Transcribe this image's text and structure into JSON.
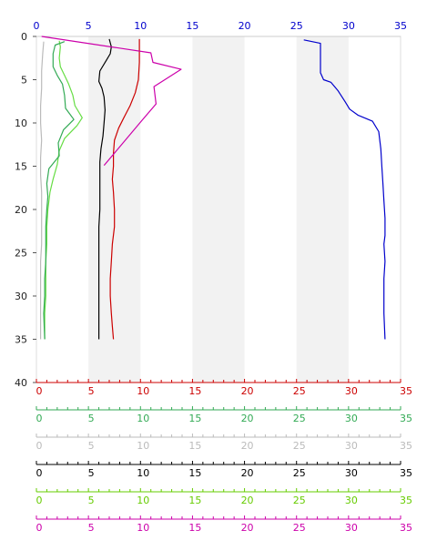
{
  "chart_data": {
    "type": "line",
    "orientation": "profile-vertical",
    "y_axis": {
      "label": "",
      "range": [
        0,
        40
      ],
      "inverted": true,
      "ticks": [
        0,
        5,
        10,
        15,
        20,
        25,
        30,
        35,
        40
      ]
    },
    "x_axes": [
      {
        "position": "top",
        "range": [
          0,
          35
        ],
        "ticks": [
          0,
          5,
          10,
          15,
          20,
          25,
          30,
          35
        ],
        "color": "#0000cc"
      },
      {
        "position": "bottom",
        "range": [
          0,
          35
        ],
        "ticks": [
          0,
          5,
          10,
          15,
          20,
          25,
          30,
          35
        ],
        "color": "#cc0000"
      },
      {
        "position": "bottom",
        "range": [
          0,
          35
        ],
        "ticks": [
          0,
          5,
          10,
          15,
          20,
          25,
          30,
          35
        ],
        "color": "#33aa55"
      },
      {
        "position": "bottom",
        "range": [
          0,
          35
        ],
        "ticks": [
          0,
          5,
          10,
          15,
          20,
          25,
          30,
          35
        ],
        "color": "#bbbbbb"
      },
      {
        "position": "bottom",
        "range": [
          0,
          35
        ],
        "ticks": [
          0,
          5,
          10,
          15,
          20,
          25,
          30,
          35
        ],
        "color": "#000000"
      },
      {
        "position": "bottom",
        "range": [
          0,
          35
        ],
        "ticks": [
          0,
          5,
          10,
          15,
          20,
          25,
          30,
          35
        ],
        "color": "#66cc00"
      },
      {
        "position": "bottom",
        "range": [
          0,
          35
        ],
        "ticks": [
          0,
          5,
          10,
          15,
          20,
          25,
          30,
          35
        ],
        "color": "#cc00aa"
      }
    ],
    "shaded_bands": [
      [
        5,
        10
      ],
      [
        15,
        20
      ],
      [
        25,
        30
      ]
    ],
    "band_color": "#f2f2f2",
    "series": [
      {
        "color": "#0000cc",
        "points": [
          [
            25.7,
            0.4
          ],
          [
            27.3,
            0.8
          ],
          [
            27.3,
            4.2
          ],
          [
            27.6,
            5.0
          ],
          [
            28.3,
            5.3
          ],
          [
            29.0,
            6.3
          ],
          [
            29.7,
            7.6
          ],
          [
            30.1,
            8.4
          ],
          [
            30.9,
            9.1
          ],
          [
            32.3,
            9.8
          ],
          [
            32.9,
            11.0
          ],
          [
            33.1,
            13.0
          ],
          [
            33.2,
            15.0
          ],
          [
            33.3,
            17.0
          ],
          [
            33.4,
            19.0
          ],
          [
            33.5,
            21.0
          ],
          [
            33.5,
            23.0
          ],
          [
            33.4,
            24.0
          ],
          [
            33.5,
            26.0
          ],
          [
            33.4,
            28.0
          ],
          [
            33.4,
            30.0
          ],
          [
            33.4,
            32.0
          ],
          [
            33.5,
            35.0
          ]
        ]
      },
      {
        "color": "#cc0000",
        "points": [
          [
            9.9,
            0.3
          ],
          [
            9.9,
            3.0
          ],
          [
            9.8,
            5.0
          ],
          [
            9.5,
            6.5
          ],
          [
            9.0,
            8.0
          ],
          [
            8.4,
            9.4
          ],
          [
            7.9,
            10.6
          ],
          [
            7.5,
            12.0
          ],
          [
            7.4,
            13.5
          ],
          [
            7.4,
            15.0
          ],
          [
            7.3,
            16.5
          ],
          [
            7.4,
            18.0
          ],
          [
            7.5,
            20.0
          ],
          [
            7.5,
            22.0
          ],
          [
            7.3,
            24.0
          ],
          [
            7.2,
            26.0
          ],
          [
            7.1,
            28.0
          ],
          [
            7.1,
            30.0
          ],
          [
            7.2,
            32.0
          ],
          [
            7.3,
            33.5
          ],
          [
            7.4,
            35.0
          ]
        ]
      },
      {
        "color": "#000000",
        "points": [
          [
            7.0,
            0.3
          ],
          [
            7.2,
            1.2
          ],
          [
            7.1,
            2.0
          ],
          [
            6.7,
            2.8
          ],
          [
            6.1,
            4.0
          ],
          [
            6.0,
            5.2
          ],
          [
            6.3,
            6.0
          ],
          [
            6.5,
            7.0
          ],
          [
            6.6,
            8.5
          ],
          [
            6.5,
            10.0
          ],
          [
            6.4,
            11.5
          ],
          [
            6.2,
            13.0
          ],
          [
            6.1,
            14.5
          ],
          [
            6.1,
            16.0
          ],
          [
            6.1,
            18.0
          ],
          [
            6.1,
            20.0
          ],
          [
            6.0,
            22.0
          ],
          [
            6.0,
            24.0
          ],
          [
            6.0,
            26.0
          ],
          [
            6.0,
            28.0
          ],
          [
            6.0,
            30.0
          ],
          [
            6.0,
            32.0
          ],
          [
            6.0,
            35.0
          ]
        ]
      },
      {
        "color": "#cc00aa",
        "points": [
          [
            0.5,
            0.0
          ],
          [
            11.0,
            1.9
          ],
          [
            11.2,
            3.0
          ],
          [
            13.9,
            3.8
          ],
          [
            11.3,
            5.8
          ],
          [
            11.5,
            7.8
          ],
          [
            10.0,
            9.9
          ],
          [
            7.7,
            13.2
          ],
          [
            6.5,
            14.9
          ]
        ]
      },
      {
        "color": "#66dd44",
        "points": [
          [
            2.2,
            0.5
          ],
          [
            2.3,
            1.2
          ],
          [
            2.2,
            2.5
          ],
          [
            2.3,
            3.5
          ],
          [
            2.7,
            4.5
          ],
          [
            3.1,
            5.5
          ],
          [
            3.5,
            6.8
          ],
          [
            3.7,
            8.0
          ],
          [
            4.4,
            9.4
          ],
          [
            3.9,
            10.3
          ],
          [
            2.7,
            11.8
          ],
          [
            2.2,
            13.2
          ],
          [
            2.0,
            14.8
          ],
          [
            1.6,
            16.5
          ],
          [
            1.3,
            18.0
          ],
          [
            1.1,
            20.0
          ],
          [
            1.0,
            22.0
          ],
          [
            1.0,
            24.0
          ],
          [
            0.9,
            26.0
          ],
          [
            0.9,
            28.0
          ],
          [
            0.9,
            30.0
          ],
          [
            0.8,
            32.0
          ],
          [
            0.8,
            35.0
          ]
        ]
      },
      {
        "color": "#33aa55",
        "points": [
          [
            2.7,
            0.6
          ],
          [
            1.8,
            1.0
          ],
          [
            1.6,
            2.0
          ],
          [
            1.6,
            3.5
          ],
          [
            2.0,
            4.5
          ],
          [
            2.5,
            5.5
          ],
          [
            2.7,
            6.8
          ],
          [
            2.8,
            8.3
          ],
          [
            3.6,
            9.6
          ],
          [
            2.6,
            10.8
          ],
          [
            2.1,
            12.3
          ],
          [
            2.2,
            13.8
          ],
          [
            1.2,
            15.3
          ],
          [
            1.0,
            17.0
          ],
          [
            1.1,
            18.5
          ],
          [
            1.0,
            20.0
          ],
          [
            0.9,
            22.0
          ],
          [
            0.9,
            24.0
          ],
          [
            0.9,
            26.0
          ],
          [
            0.8,
            28.0
          ],
          [
            0.8,
            30.0
          ],
          [
            0.7,
            32.0
          ],
          [
            0.8,
            35.0
          ]
        ]
      },
      {
        "color": "#bbbbbb",
        "points": [
          [
            0.7,
            0.6
          ],
          [
            0.6,
            2.0
          ],
          [
            0.5,
            4.0
          ],
          [
            0.5,
            6.0
          ],
          [
            0.4,
            8.0
          ],
          [
            0.4,
            10.0
          ],
          [
            0.5,
            12.0
          ],
          [
            0.4,
            14.0
          ],
          [
            0.4,
            16.0
          ],
          [
            0.5,
            18.0
          ],
          [
            0.5,
            20.0
          ],
          [
            0.5,
            22.0
          ],
          [
            0.5,
            24.0
          ],
          [
            0.4,
            26.0
          ],
          [
            0.4,
            28.0
          ],
          [
            0.4,
            30.0
          ],
          [
            0.4,
            32.0
          ],
          [
            0.4,
            35.0
          ]
        ]
      }
    ]
  }
}
